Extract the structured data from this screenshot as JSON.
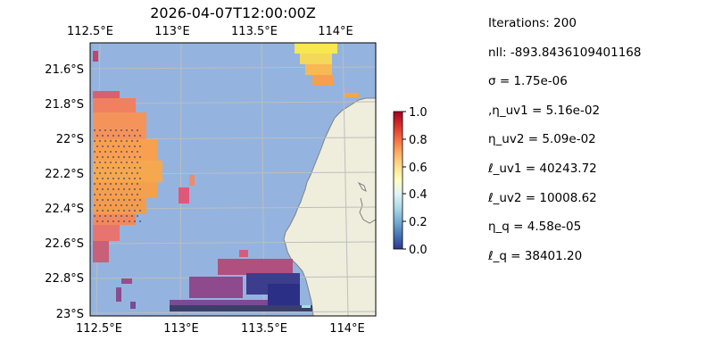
{
  "map": {
    "title": "2026-04-07T12:00:00Z",
    "lon_range": [
      112.5,
      114.2
    ],
    "lat_range": [
      -23.0,
      -21.45
    ],
    "top_tick_labels": [
      "112.5°E",
      "113°E",
      "113.5°E",
      "114°E"
    ],
    "bottom_tick_labels": [
      "112.5°E",
      "113°E",
      "113.5°E",
      "114°E"
    ],
    "left_tick_labels": [
      "21.6°S",
      "21.8°S",
      "22°S",
      "22.2°S",
      "22.4°S",
      "22.6°S",
      "22.8°S",
      "23°S"
    ],
    "ocean_color": "#94b4df",
    "land_color": "#efeedd",
    "coastline_color": "#808080",
    "gridlines": true
  },
  "colorbar": {
    "min": 0.0,
    "max": 1.0,
    "colormap": "RdYlBu_r",
    "tick_labels": [
      "0.0",
      "0.2",
      "0.4",
      "0.6",
      "0.8",
      "1.0"
    ]
  },
  "stats": [
    "Iterations: 200",
    "nll: -893.8436109401168",
    "σ = 1.75e-06",
    ",η_uv1 = 5.16e-02",
    "η_uv2 = 5.09e-02",
    "ℓ_uv1 = 40243.72",
    "ℓ_uv2 = 10008.62",
    "η_q = 4.58e-05",
    "ℓ_q = 38401.20"
  ]
}
